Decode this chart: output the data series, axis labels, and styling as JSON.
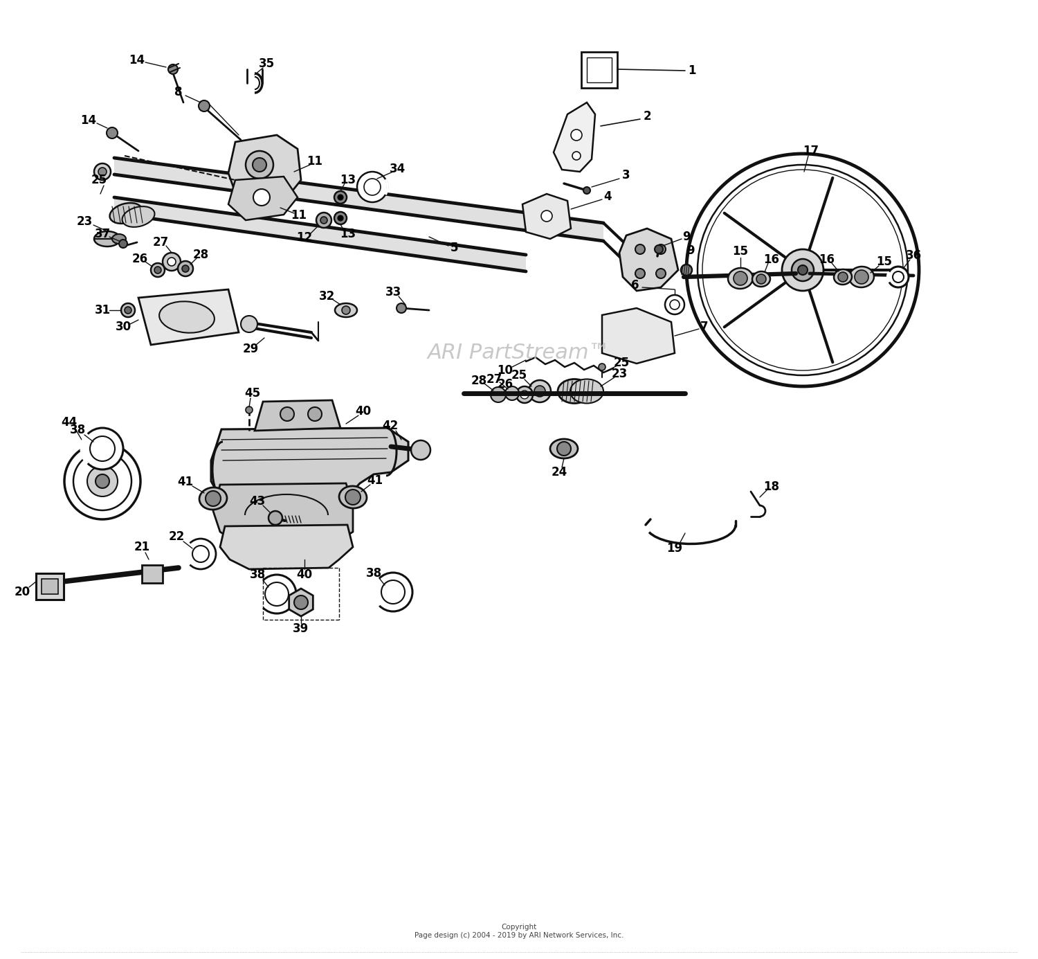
{
  "watermark": "ARI PartStream™",
  "copyright_text": "Copyright\nPage design (c) 2004 - 2019 by ARI Network Services, Inc.",
  "background_color": "#ffffff",
  "line_color": "#111111",
  "watermark_color": "#bbbbbb",
  "figsize": [
    15.0,
    13.85
  ],
  "dpi": 100,
  "label_size": 12
}
